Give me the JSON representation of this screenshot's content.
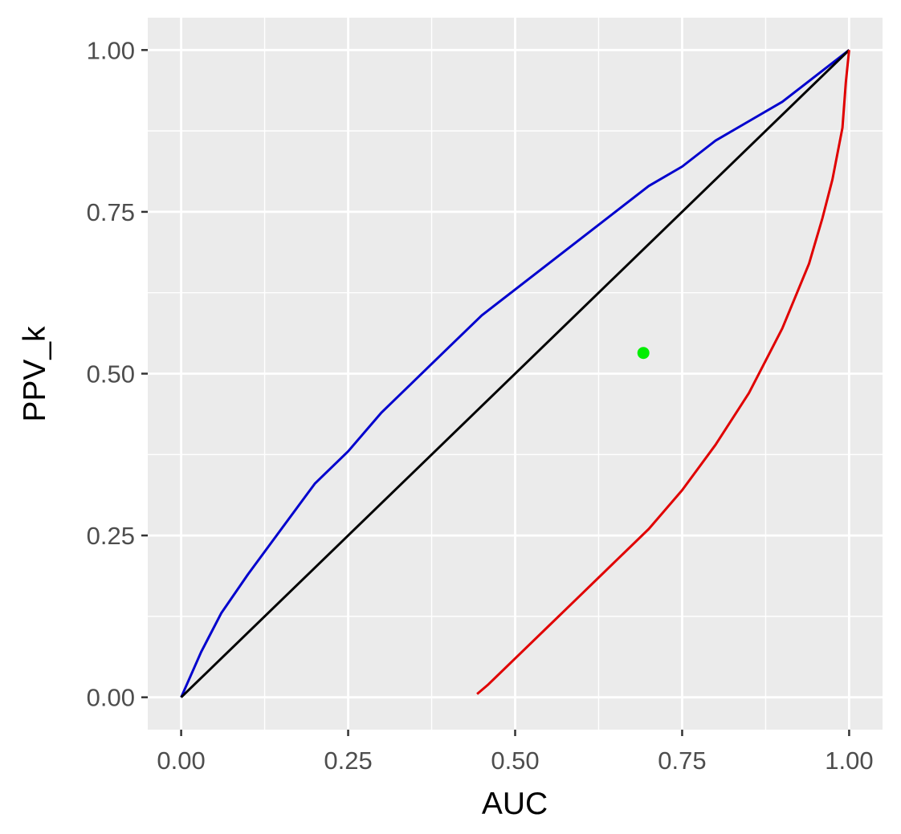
{
  "chart_data": {
    "type": "line",
    "xlabel": "AUC",
    "ylabel": "PPV_k",
    "xlim": [
      -0.05,
      1.05
    ],
    "ylim": [
      -0.05,
      1.05
    ],
    "x_ticks": [
      0,
      0.25,
      0.5,
      0.75,
      1
    ],
    "x_tick_labels": [
      "0.00",
      "0.25",
      "0.50",
      "0.75",
      "1.00"
    ],
    "y_ticks": [
      0,
      0.25,
      0.5,
      0.75,
      1
    ],
    "y_tick_labels": [
      "0.00",
      "0.25",
      "0.50",
      "0.75",
      "1.00"
    ],
    "minor_breaks": [
      0.125,
      0.375,
      0.625,
      0.875
    ],
    "grid": true,
    "legend": "none",
    "panel_background": "#ebebeb",
    "grid_color": "#ffffff",
    "series": [
      {
        "color": "#0000cd",
        "type": "line",
        "x": [
          0,
          0.03,
          0.06,
          0.1,
          0.15,
          0.2,
          0.25,
          0.3,
          0.35,
          0.4,
          0.45,
          0.5,
          0.55,
          0.6,
          0.65,
          0.7,
          0.75,
          0.8,
          0.85,
          0.9,
          0.95,
          1.0
        ],
        "y": [
          0,
          0.07,
          0.13,
          0.19,
          0.26,
          0.33,
          0.38,
          0.44,
          0.49,
          0.54,
          0.59,
          0.63,
          0.67,
          0.71,
          0.75,
          0.79,
          0.82,
          0.86,
          0.89,
          0.92,
          0.96,
          1.0
        ]
      },
      {
        "color": "#000000",
        "type": "line",
        "x": [
          0,
          1
        ],
        "y": [
          0,
          1
        ]
      },
      {
        "color": "#e00000",
        "type": "line",
        "x": [
          0.443,
          0.46,
          0.5,
          0.55,
          0.6,
          0.65,
          0.7,
          0.75,
          0.8,
          0.85,
          0.88,
          0.9,
          0.92,
          0.94,
          0.96,
          0.975,
          0.99,
          0.995,
          1.0
        ],
        "y": [
          0.005,
          0.02,
          0.06,
          0.11,
          0.16,
          0.21,
          0.26,
          0.32,
          0.39,
          0.47,
          0.53,
          0.57,
          0.62,
          0.67,
          0.74,
          0.8,
          0.88,
          0.95,
          1.0
        ]
      },
      {
        "color": "#00ee00",
        "type": "scatter",
        "x": [
          0.692
        ],
        "y": [
          0.532
        ]
      }
    ]
  }
}
